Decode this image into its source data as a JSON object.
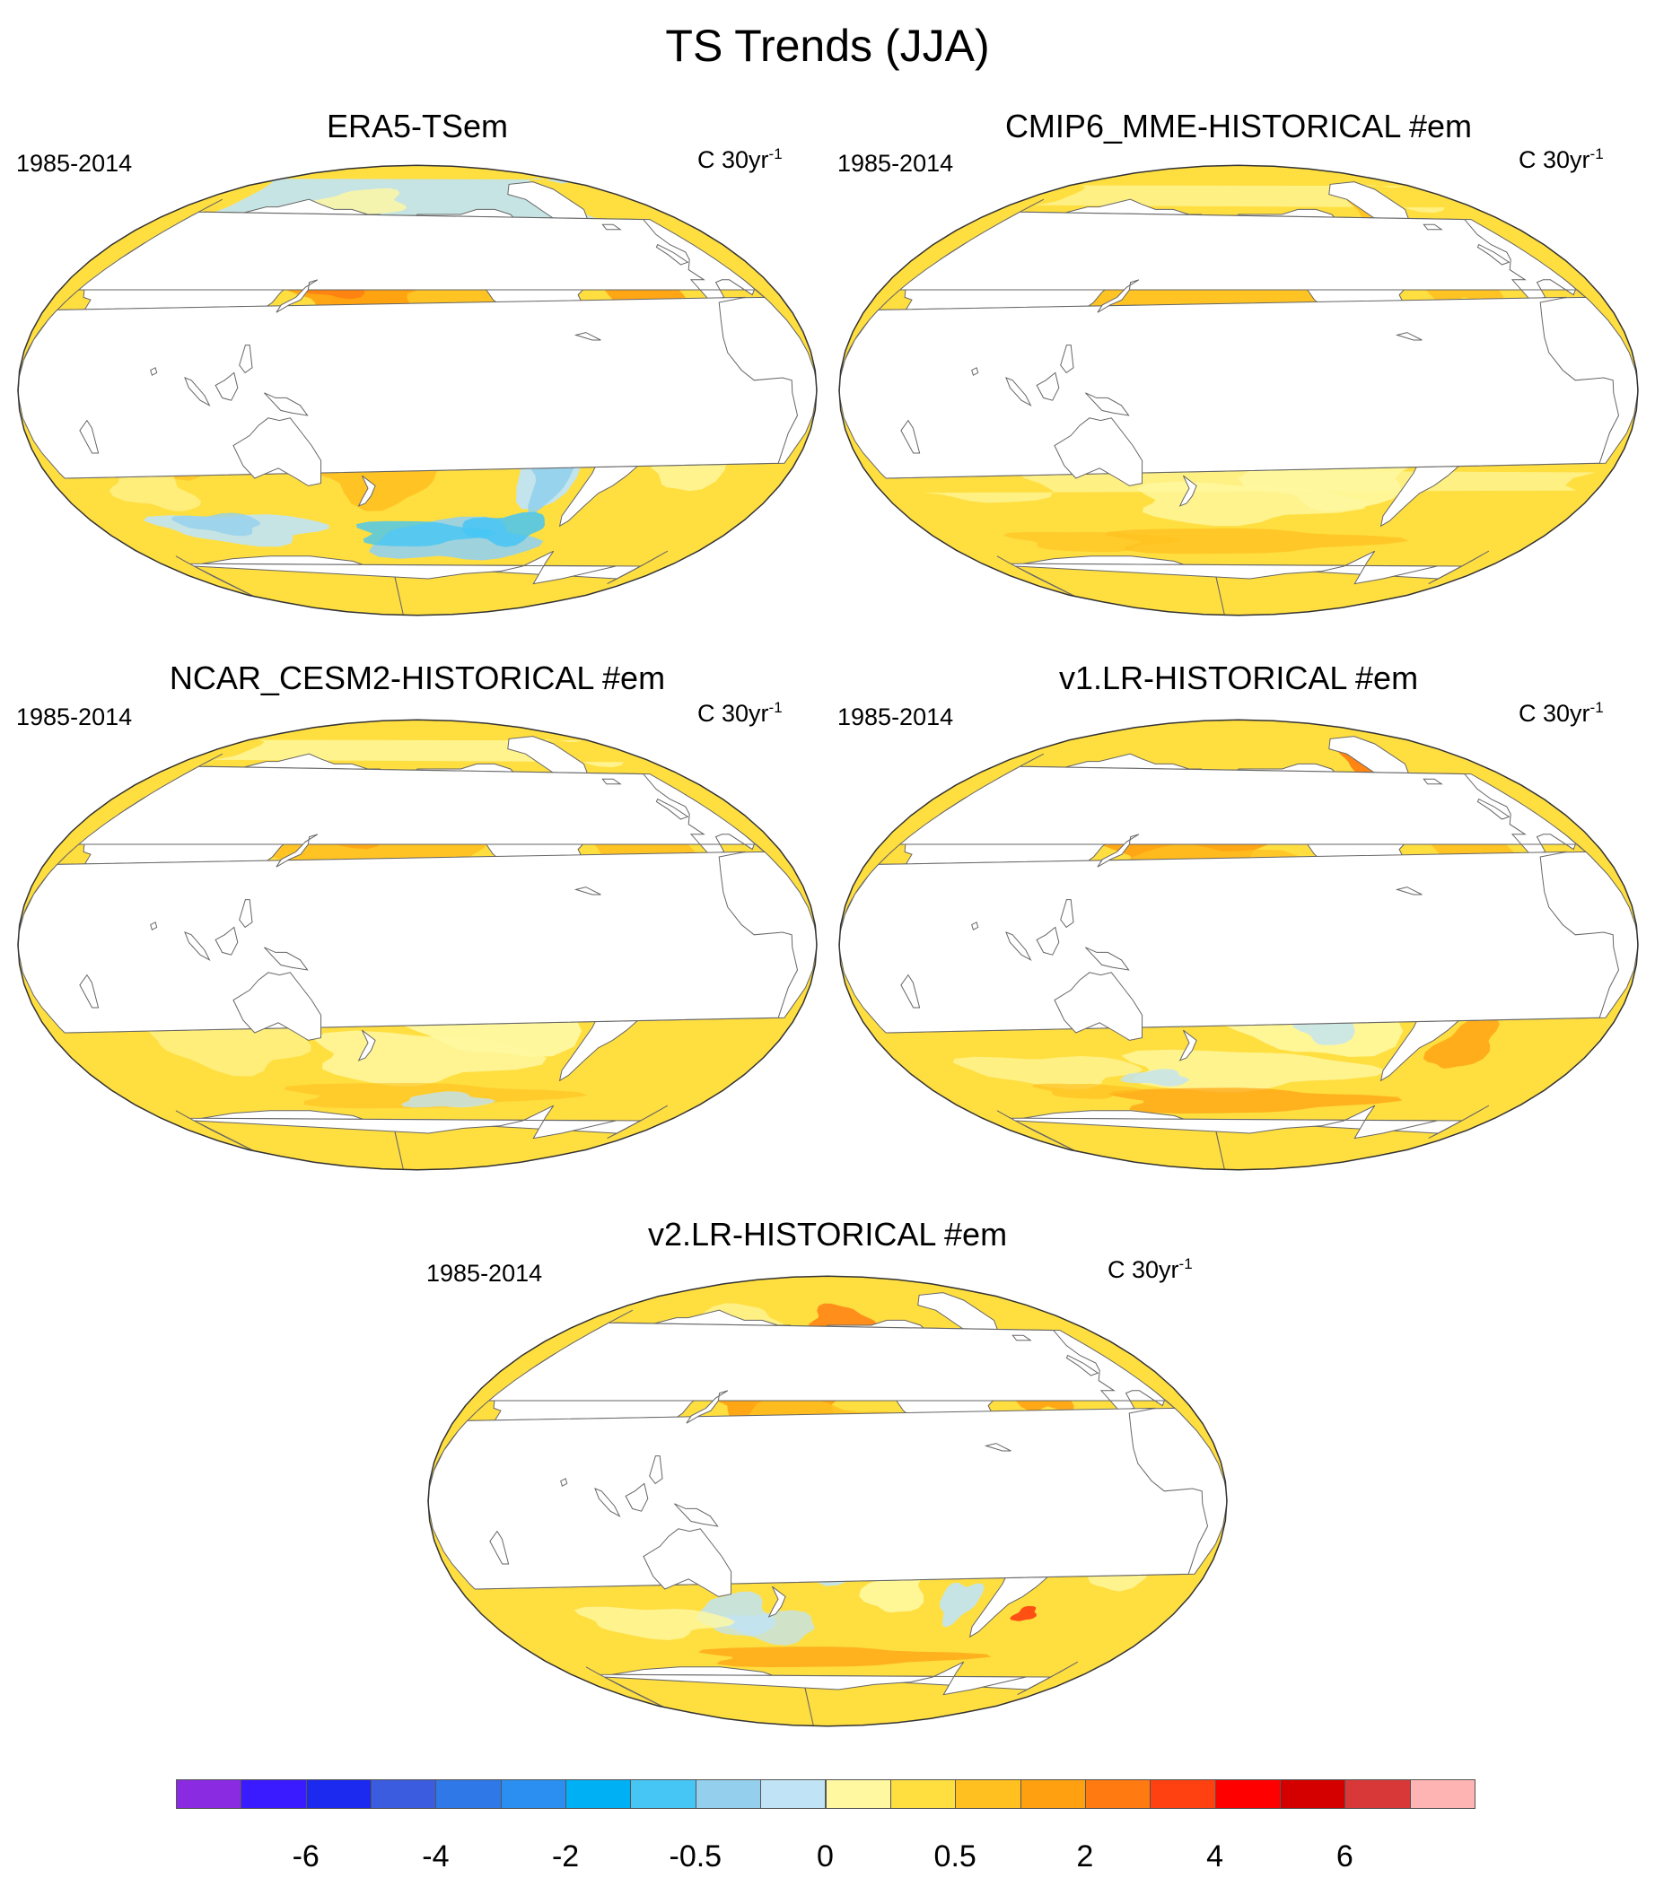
{
  "figure": {
    "title": "TS Trends (JJA)"
  },
  "panels": [
    {
      "title": "ERA5-TSem",
      "period": "1985-2014",
      "units": "C 30yr",
      "units_exp": "-1",
      "pattern": "era5"
    },
    {
      "title": "CMIP6_MME-HISTORICAL  #em",
      "period": "1985-2014",
      "units": "C 30yr",
      "units_exp": "-1",
      "pattern": "cmip6"
    },
    {
      "title": "NCAR_CESM2-HISTORICAL  #em",
      "period": "1985-2014",
      "units": "C 30yr",
      "units_exp": "-1",
      "pattern": "cesm2"
    },
    {
      "title": "v1.LR-HISTORICAL  #em",
      "period": "1985-2014",
      "units": "C 30yr",
      "units_exp": "-1",
      "pattern": "v1lr"
    },
    {
      "title": "v2.LR-HISTORICAL  #em",
      "period": "1985-2014",
      "units": "C 30yr",
      "units_exp": "-1",
      "pattern": "v2lr"
    }
  ],
  "colorbar": {
    "colors": [
      "#8a2be2",
      "#3a1aff",
      "#1c2af0",
      "#3c5ce0",
      "#2f78e8",
      "#2a8ff0",
      "#00b0f5",
      "#45c6f5",
      "#94d0ee",
      "#c0e4f5",
      "#fff8a0",
      "#ffde40",
      "#ffc020",
      "#ffa010",
      "#ff7a10",
      "#ff4010",
      "#ff0000",
      "#d40000",
      "#d83838",
      "#ffb4b4"
    ],
    "tick_labels": [
      {
        "text": "-6",
        "after_box": 2
      },
      {
        "text": "-4",
        "after_box": 4
      },
      {
        "text": "-2",
        "after_box": 6
      },
      {
        "text": "-0.5",
        "after_box": 8
      },
      {
        "text": "0",
        "after_box": 10
      },
      {
        "text": "0.5",
        "after_box": 12
      },
      {
        "text": "2",
        "after_box": 14
      },
      {
        "text": "4",
        "after_box": 16
      },
      {
        "text": "6",
        "after_box": 18
      }
    ]
  }
}
